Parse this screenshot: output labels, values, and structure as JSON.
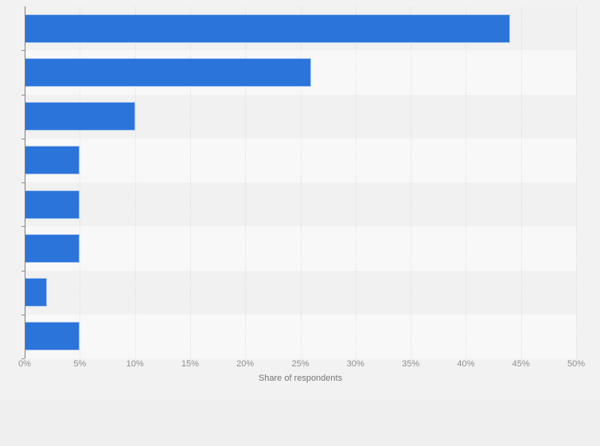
{
  "chart_data": {
    "type": "bar",
    "orientation": "horizontal",
    "title": "",
    "categories": [
      "",
      "",
      "",
      "",
      "",
      "",
      "",
      ""
    ],
    "values": [
      44,
      26,
      10,
      5,
      5,
      5,
      2,
      5
    ],
    "xlabel": "Share of respondents",
    "ylabel": "",
    "xlim": [
      0,
      50
    ],
    "x_ticks": [
      "0%",
      "5%",
      "10%",
      "15%",
      "20%",
      "25%",
      "30%",
      "35%",
      "40%",
      "45%",
      "50%"
    ],
    "grid": "vertical-dotted",
    "legend": "none",
    "bar_color": "#2b74d9",
    "bar_border_color": "#a9c6ee",
    "stripe_color_odd": "#f1f1f1",
    "stripe_color_even": "#f8f8f8",
    "axis_line_color": "#7e7e7e",
    "tick_label_color": "#8f8f8f",
    "axis_title_color": "#757575",
    "background_color": "#f2f2f2"
  }
}
